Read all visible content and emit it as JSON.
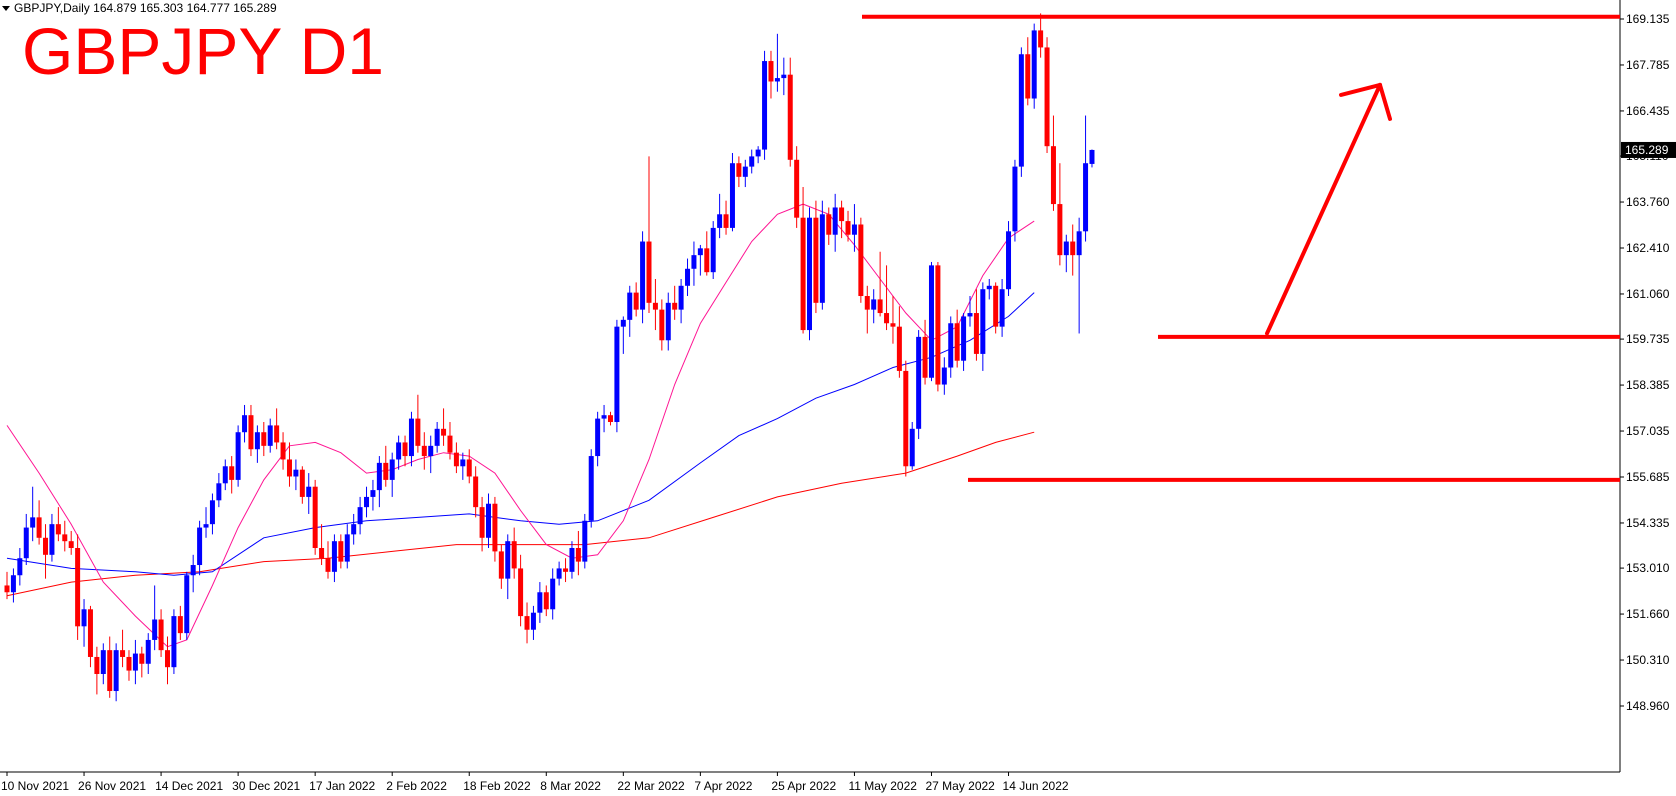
{
  "header": {
    "info": "GBPJPY,Daily  164.879 165.303 164.777 165.289",
    "title": "GBPJPY D1"
  },
  "chart_data": {
    "type": "candlestick",
    "ylim": [
      148.3,
      169.6
    ],
    "price_labels": [
      "169.135",
      "167.785",
      "166.435",
      "165.110",
      "163.760",
      "162.410",
      "161.060",
      "159.735",
      "158.385",
      "157.035",
      "155.685",
      "154.335",
      "153.010",
      "151.660",
      "150.310",
      "148.960"
    ],
    "price_values": [
      169.135,
      167.785,
      166.435,
      165.11,
      163.76,
      162.41,
      161.06,
      159.735,
      158.385,
      157.035,
      155.685,
      154.335,
      153.01,
      151.66,
      150.31,
      148.96
    ],
    "current_price": "165.289",
    "date_labels": [
      "10 Nov 2021",
      "26 Nov 2021",
      "14 Dec 2021",
      "30 Dec 2021",
      "17 Jan 2022",
      "2 Feb 2022",
      "18 Feb 2022",
      "8 Mar 2022",
      "22 Mar 2022",
      "7 Apr 2022",
      "25 Apr 2022",
      "11 May 2022",
      "27 May 2022",
      "14 Jun 2022"
    ],
    "date_label_index": [
      0,
      12,
      24,
      36,
      48,
      60,
      72,
      84,
      96,
      108,
      120,
      132,
      144,
      156
    ],
    "colors": {
      "bull": "#0000ff",
      "bear": "#ff0000",
      "ma_fast": "#ff1493",
      "ma_mid": "#0000ff",
      "ma_slow": "#ff0000",
      "annotation": "#ff0000"
    },
    "candles": [
      [
        152.5,
        152.9,
        152.1,
        152.3
      ],
      [
        152.3,
        153.0,
        152.0,
        152.8
      ],
      [
        152.8,
        153.6,
        152.5,
        153.3
      ],
      [
        153.3,
        154.6,
        153.1,
        154.2
      ],
      [
        154.2,
        155.4,
        153.8,
        154.5
      ],
      [
        154.5,
        155.0,
        153.7,
        153.9
      ],
      [
        153.9,
        154.3,
        152.7,
        153.4
      ],
      [
        153.4,
        154.6,
        153.2,
        154.3
      ],
      [
        154.3,
        154.8,
        153.8,
        154.0
      ],
      [
        154.0,
        154.4,
        153.5,
        153.8
      ],
      [
        153.8,
        154.1,
        153.4,
        153.6
      ],
      [
        153.6,
        154.0,
        150.9,
        151.3
      ],
      [
        151.3,
        152.1,
        150.7,
        151.8
      ],
      [
        151.8,
        151.9,
        150.1,
        150.4
      ],
      [
        150.4,
        150.7,
        149.3,
        149.9
      ],
      [
        149.9,
        150.8,
        149.6,
        150.6
      ],
      [
        150.6,
        151.0,
        149.2,
        149.4
      ],
      [
        149.4,
        150.8,
        149.1,
        150.6
      ],
      [
        150.6,
        151.2,
        150.1,
        150.4
      ],
      [
        150.4,
        150.6,
        149.7,
        150.0
      ],
      [
        150.0,
        150.9,
        149.6,
        150.5
      ],
      [
        150.5,
        150.7,
        149.8,
        150.2
      ],
      [
        150.2,
        151.1,
        149.9,
        150.9
      ],
      [
        150.9,
        152.5,
        150.6,
        151.5
      ],
      [
        151.5,
        151.8,
        150.4,
        150.6
      ],
      [
        150.6,
        151.0,
        149.6,
        150.1
      ],
      [
        150.1,
        151.8,
        149.9,
        151.6
      ],
      [
        151.6,
        151.9,
        150.9,
        151.1
      ],
      [
        151.1,
        152.9,
        150.9,
        152.8
      ],
      [
        152.8,
        153.4,
        152.3,
        153.1
      ],
      [
        153.1,
        154.4,
        152.8,
        154.2
      ],
      [
        154.2,
        154.8,
        153.9,
        154.3
      ],
      [
        154.3,
        155.2,
        154.0,
        155.0
      ],
      [
        155.0,
        155.8,
        154.8,
        155.5
      ],
      [
        155.5,
        156.2,
        155.3,
        156.0
      ],
      [
        156.0,
        156.3,
        155.2,
        155.6
      ],
      [
        155.6,
        157.2,
        155.4,
        157.0
      ],
      [
        157.0,
        157.8,
        156.7,
        157.5
      ],
      [
        157.5,
        157.8,
        156.3,
        156.5
      ],
      [
        156.5,
        157.2,
        156.1,
        157.0
      ],
      [
        157.0,
        157.3,
        156.3,
        156.6
      ],
      [
        156.6,
        157.4,
        156.4,
        157.2
      ],
      [
        157.2,
        157.7,
        156.5,
        156.7
      ],
      [
        156.7,
        157.0,
        155.9,
        156.2
      ],
      [
        156.2,
        156.7,
        155.4,
        155.7
      ],
      [
        155.7,
        156.2,
        155.3,
        155.9
      ],
      [
        155.9,
        156.0,
        154.9,
        155.1
      ],
      [
        155.1,
        155.8,
        154.6,
        155.4
      ],
      [
        155.4,
        155.6,
        153.4,
        153.6
      ],
      [
        153.6,
        154.3,
        153.1,
        153.3
      ],
      [
        153.3,
        153.8,
        152.7,
        152.9
      ],
      [
        152.9,
        154.0,
        152.6,
        153.8
      ],
      [
        153.8,
        154.0,
        153.0,
        153.2
      ],
      [
        153.2,
        154.3,
        153.0,
        154.0
      ],
      [
        154.0,
        154.6,
        153.7,
        154.3
      ],
      [
        154.3,
        155.1,
        154.0,
        154.8
      ],
      [
        154.8,
        155.4,
        154.5,
        155.1
      ],
      [
        155.1,
        155.6,
        154.7,
        155.3
      ],
      [
        155.3,
        156.3,
        154.8,
        156.1
      ],
      [
        156.1,
        156.6,
        155.4,
        155.6
      ],
      [
        155.6,
        156.4,
        155.1,
        156.2
      ],
      [
        156.2,
        156.9,
        155.9,
        156.7
      ],
      [
        156.7,
        156.9,
        156.0,
        156.3
      ],
      [
        156.3,
        157.6,
        156.0,
        157.4
      ],
      [
        157.4,
        158.1,
        156.4,
        156.6
      ],
      [
        156.6,
        157.0,
        155.9,
        156.3
      ],
      [
        156.3,
        156.9,
        155.8,
        156.6
      ],
      [
        156.6,
        157.3,
        156.4,
        157.1
      ],
      [
        157.1,
        157.7,
        156.6,
        156.9
      ],
      [
        156.9,
        157.3,
        156.2,
        156.4
      ],
      [
        156.4,
        156.7,
        155.8,
        156.0
      ],
      [
        156.0,
        156.4,
        155.6,
        156.2
      ],
      [
        156.2,
        156.5,
        155.5,
        155.7
      ],
      [
        155.7,
        156.0,
        154.5,
        154.8
      ],
      [
        154.8,
        155.1,
        153.5,
        153.9
      ],
      [
        153.9,
        155.2,
        153.6,
        154.9
      ],
      [
        154.9,
        155.1,
        153.2,
        153.5
      ],
      [
        153.5,
        153.7,
        152.4,
        152.7
      ],
      [
        152.7,
        154.0,
        152.1,
        153.8
      ],
      [
        153.8,
        154.2,
        152.7,
        153.0
      ],
      [
        153.0,
        153.4,
        151.3,
        151.6
      ],
      [
        151.6,
        152.0,
        150.8,
        151.2
      ],
      [
        151.2,
        151.9,
        150.9,
        151.7
      ],
      [
        151.7,
        152.6,
        151.4,
        152.3
      ],
      [
        152.3,
        152.5,
        151.6,
        151.8
      ],
      [
        151.8,
        153.0,
        151.5,
        152.7
      ],
      [
        152.7,
        153.2,
        152.5,
        153.0
      ],
      [
        153.0,
        153.3,
        152.6,
        152.9
      ],
      [
        152.9,
        153.8,
        152.7,
        153.6
      ],
      [
        153.6,
        154.1,
        152.8,
        153.2
      ],
      [
        153.2,
        154.6,
        153.0,
        154.4
      ],
      [
        154.4,
        156.5,
        154.2,
        156.3
      ],
      [
        156.3,
        157.6,
        156.0,
        157.4
      ],
      [
        157.4,
        157.8,
        157.0,
        157.5
      ],
      [
        157.5,
        157.6,
        157.2,
        157.3
      ],
      [
        157.3,
        160.3,
        157.0,
        160.1
      ],
      [
        160.1,
        160.4,
        159.3,
        160.3
      ],
      [
        160.3,
        161.3,
        159.8,
        161.1
      ],
      [
        161.1,
        161.4,
        160.4,
        160.6
      ],
      [
        160.6,
        162.9,
        160.2,
        162.6
      ],
      [
        162.6,
        165.1,
        160.5,
        160.8
      ],
      [
        160.8,
        161.5,
        160.0,
        160.6
      ],
      [
        160.6,
        160.9,
        159.4,
        159.7
      ],
      [
        159.7,
        161.1,
        159.4,
        160.8
      ],
      [
        160.8,
        161.3,
        160.3,
        160.6
      ],
      [
        160.6,
        161.5,
        160.2,
        161.3
      ],
      [
        161.3,
        162.1,
        161.0,
        161.8
      ],
      [
        161.8,
        162.6,
        161.3,
        162.2
      ],
      [
        162.2,
        162.5,
        161.6,
        162.4
      ],
      [
        162.4,
        162.9,
        161.6,
        161.7
      ],
      [
        161.7,
        163.2,
        161.5,
        163.0
      ],
      [
        163.0,
        164.0,
        162.7,
        163.4
      ],
      [
        163.4,
        163.8,
        162.8,
        163.0
      ],
      [
        163.0,
        165.2,
        162.9,
        164.9
      ],
      [
        164.9,
        165.1,
        164.2,
        164.5
      ],
      [
        164.5,
        165.0,
        164.2,
        164.8
      ],
      [
        164.8,
        165.3,
        164.6,
        165.1
      ],
      [
        165.1,
        165.4,
        164.9,
        165.3
      ],
      [
        165.3,
        168.2,
        165.0,
        167.9
      ],
      [
        167.9,
        168.2,
        166.8,
        167.3
      ],
      [
        167.3,
        168.7,
        167.0,
        167.4
      ],
      [
        167.4,
        168.0,
        166.9,
        167.5
      ],
      [
        167.5,
        168.0,
        164.8,
        165.0
      ],
      [
        165.0,
        165.4,
        163.0,
        163.3
      ],
      [
        163.3,
        164.2,
        159.9,
        160.0
      ],
      [
        160.0,
        163.6,
        159.7,
        163.3
      ],
      [
        163.3,
        163.8,
        160.5,
        160.8
      ],
      [
        160.8,
        163.8,
        160.6,
        163.4
      ],
      [
        163.4,
        163.6,
        162.5,
        162.8
      ],
      [
        162.8,
        164.0,
        162.3,
        163.6
      ],
      [
        163.6,
        163.8,
        162.7,
        163.2
      ],
      [
        163.2,
        163.5,
        162.6,
        162.8
      ],
      [
        162.8,
        163.7,
        162.3,
        163.1
      ],
      [
        163.1,
        163.3,
        160.8,
        161.0
      ],
      [
        161.0,
        161.3,
        159.9,
        160.6
      ],
      [
        160.6,
        161.2,
        160.2,
        160.9
      ],
      [
        160.9,
        162.3,
        160.4,
        160.5
      ],
      [
        160.5,
        161.9,
        160.0,
        160.2
      ],
      [
        160.2,
        161.0,
        159.6,
        160.1
      ],
      [
        160.1,
        160.7,
        158.6,
        158.8
      ],
      [
        158.8,
        159.1,
        155.7,
        156.0
      ],
      [
        156.0,
        157.3,
        155.9,
        157.1
      ],
      [
        157.1,
        160.0,
        156.8,
        159.8
      ],
      [
        159.8,
        160.3,
        158.4,
        158.6
      ],
      [
        158.6,
        162.0,
        158.5,
        161.9
      ],
      [
        161.9,
        162.0,
        158.2,
        158.4
      ],
      [
        158.4,
        159.2,
        158.1,
        158.9
      ],
      [
        158.9,
        160.4,
        158.6,
        160.2
      ],
      [
        160.2,
        160.6,
        158.9,
        159.1
      ],
      [
        159.1,
        160.5,
        158.8,
        160.4
      ],
      [
        160.4,
        161.0,
        160.1,
        160.5
      ],
      [
        160.5,
        161.2,
        159.1,
        159.3
      ],
      [
        159.3,
        161.4,
        158.8,
        161.2
      ],
      [
        161.2,
        161.5,
        160.9,
        161.3
      ],
      [
        161.3,
        161.4,
        159.9,
        160.1
      ],
      [
        160.1,
        161.5,
        159.8,
        161.2
      ],
      [
        161.2,
        163.2,
        161.0,
        162.9
      ],
      [
        162.9,
        165.0,
        162.6,
        164.8
      ],
      [
        164.8,
        168.3,
        164.5,
        168.1
      ],
      [
        168.1,
        168.6,
        166.6,
        166.8
      ],
      [
        166.8,
        169.0,
        166.5,
        168.8
      ],
      [
        168.8,
        169.3,
        168.0,
        168.3
      ],
      [
        168.3,
        168.6,
        165.2,
        165.4
      ],
      [
        165.4,
        166.3,
        163.5,
        163.7
      ],
      [
        163.7,
        164.9,
        161.9,
        162.2
      ],
      [
        162.2,
        162.8,
        161.7,
        162.6
      ],
      [
        162.6,
        163.1,
        161.6,
        162.2
      ],
      [
        162.2,
        163.3,
        159.9,
        162.9
      ],
      [
        162.9,
        166.3,
        162.6,
        164.9
      ],
      [
        164.879,
        165.303,
        164.777,
        165.289
      ]
    ],
    "ma_fast_points": [
      [
        0,
        157.2
      ],
      [
        5,
        155.8
      ],
      [
        10,
        154.3
      ],
      [
        15,
        152.6
      ],
      [
        20,
        151.6
      ],
      [
        25,
        150.7
      ],
      [
        28,
        150.9
      ],
      [
        32,
        152.5
      ],
      [
        36,
        154.2
      ],
      [
        40,
        155.6
      ],
      [
        44,
        156.6
      ],
      [
        48,
        156.7
      ],
      [
        52,
        156.4
      ],
      [
        56,
        155.8
      ],
      [
        60,
        155.9
      ],
      [
        64,
        156.2
      ],
      [
        68,
        156.4
      ],
      [
        72,
        156.3
      ],
      [
        76,
        155.8
      ],
      [
        80,
        154.7
      ],
      [
        84,
        153.7
      ],
      [
        88,
        153.3
      ],
      [
        92,
        153.4
      ],
      [
        96,
        154.4
      ],
      [
        100,
        156.2
      ],
      [
        104,
        158.4
      ],
      [
        108,
        160.2
      ],
      [
        112,
        161.4
      ],
      [
        116,
        162.6
      ],
      [
        120,
        163.4
      ],
      [
        124,
        163.7
      ],
      [
        128,
        163.4
      ],
      [
        132,
        162.5
      ],
      [
        136,
        161.5
      ],
      [
        140,
        160.5
      ],
      [
        144,
        159.7
      ],
      [
        148,
        160.1
      ],
      [
        152,
        161.6
      ],
      [
        156,
        162.7
      ],
      [
        160,
        163.2
      ]
    ],
    "ma_mid_points": [
      [
        0,
        153.3
      ],
      [
        10,
        153.0
      ],
      [
        20,
        152.9
      ],
      [
        26,
        152.8
      ],
      [
        32,
        152.9
      ],
      [
        40,
        153.9
      ],
      [
        48,
        154.2
      ],
      [
        56,
        154.4
      ],
      [
        64,
        154.5
      ],
      [
        72,
        154.6
      ],
      [
        80,
        154.4
      ],
      [
        86,
        154.3
      ],
      [
        92,
        154.4
      ],
      [
        100,
        155.0
      ],
      [
        108,
        156.1
      ],
      [
        114,
        156.9
      ],
      [
        120,
        157.4
      ],
      [
        126,
        158.0
      ],
      [
        132,
        158.4
      ],
      [
        138,
        158.9
      ],
      [
        144,
        159.2
      ],
      [
        150,
        159.7
      ],
      [
        156,
        160.4
      ],
      [
        160,
        161.1
      ]
    ],
    "ma_slow_points": [
      [
        0,
        152.2
      ],
      [
        10,
        152.6
      ],
      [
        20,
        152.8
      ],
      [
        30,
        152.9
      ],
      [
        40,
        153.2
      ],
      [
        50,
        153.3
      ],
      [
        60,
        153.5
      ],
      [
        70,
        153.7
      ],
      [
        80,
        153.7
      ],
      [
        90,
        153.7
      ],
      [
        100,
        153.9
      ],
      [
        110,
        154.5
      ],
      [
        120,
        155.1
      ],
      [
        130,
        155.5
      ],
      [
        140,
        155.8
      ],
      [
        148,
        156.3
      ],
      [
        154,
        156.7
      ],
      [
        160,
        157.0
      ]
    ],
    "resistance_level": 169.2,
    "support_level_1": 159.8,
    "support_level_2": 155.6,
    "arrow_from": [
      156.8,
      159.9
    ],
    "arrow_to": [
      166.0,
      167.2
    ]
  }
}
